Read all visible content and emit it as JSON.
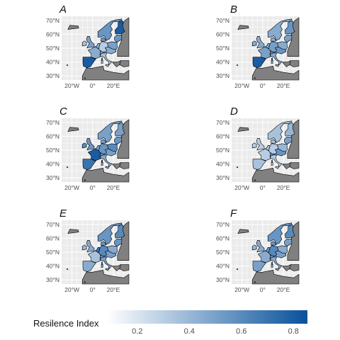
{
  "legend": {
    "title": "Resilence Index",
    "min": 0.08,
    "max": 0.85,
    "ticks": [
      {
        "value": 0.2,
        "label": "0.2"
      },
      {
        "value": 0.4,
        "label": "0.4"
      },
      {
        "value": 0.6,
        "label": "0.6"
      },
      {
        "value": 0.8,
        "label": "0.8"
      }
    ],
    "color_low": "#ffffff",
    "color_high": "#08519c"
  },
  "axes": {
    "lat_labels": [
      "70°N",
      "60°N",
      "50°N",
      "40°N",
      "30°N"
    ],
    "lon_labels": [
      "20°W",
      "0°",
      "20°E"
    ]
  },
  "colors": {
    "panel_background": "#ebebeb",
    "gridline": "#ffffff",
    "no_data_country": "#808080",
    "border": "#000000"
  },
  "panels": [
    {
      "letter": "A",
      "values": {
        "iberia": 0.8,
        "france": 0.45,
        "uk": 0.5,
        "ireland": 0.35,
        "germany": 0.3,
        "benelux": 0.45,
        "nordics": 0.55,
        "finland": 0.8,
        "baltics": 0.55,
        "poland": 0.5,
        "central": 0.45,
        "italy": 0.35
      }
    },
    {
      "letter": "B",
      "values": {
        "iberia": 0.8,
        "france": 0.5,
        "uk": 0.45,
        "ireland": 0.45,
        "germany": 0.5,
        "benelux": 0.5,
        "nordics": 0.45,
        "finland": 0.55,
        "baltics": 0.5,
        "poland": 0.45,
        "central": 0.55,
        "italy": 0.45
      }
    },
    {
      "letter": "C",
      "values": {
        "iberia": 0.7,
        "france": 0.8,
        "uk": 0.55,
        "ireland": 0.6,
        "germany": 0.55,
        "benelux": 0.5,
        "nordics": 0.5,
        "finland": 0.5,
        "baltics": 0.55,
        "poland": 0.6,
        "central": 0.5,
        "italy": 0.45
      }
    },
    {
      "letter": "D",
      "values": {
        "iberia": 0.35,
        "france": 0.3,
        "uk": 0.3,
        "ireland": 0.3,
        "germany": 0.3,
        "benelux": 0.35,
        "nordics": 0.35,
        "finland": 0.4,
        "baltics": 0.5,
        "poland": 0.4,
        "central": 0.55,
        "italy": 0.3
      }
    },
    {
      "letter": "E",
      "values": {
        "iberia": 0.45,
        "france": 0.35,
        "uk": 0.45,
        "ireland": 0.4,
        "germany": 0.6,
        "benelux": 0.7,
        "nordics": 0.55,
        "finland": 0.6,
        "baltics": 0.55,
        "poland": 0.45,
        "central": 0.5,
        "italy": 0.5
      }
    },
    {
      "letter": "F",
      "values": {
        "iberia": 0.5,
        "france": 0.45,
        "uk": 0.45,
        "ireland": 0.4,
        "germany": 0.6,
        "benelux": 0.55,
        "nordics": 0.55,
        "finland": 0.6,
        "baltics": 0.5,
        "poland": 0.45,
        "central": 0.5,
        "italy": 0.45
      }
    }
  ]
}
